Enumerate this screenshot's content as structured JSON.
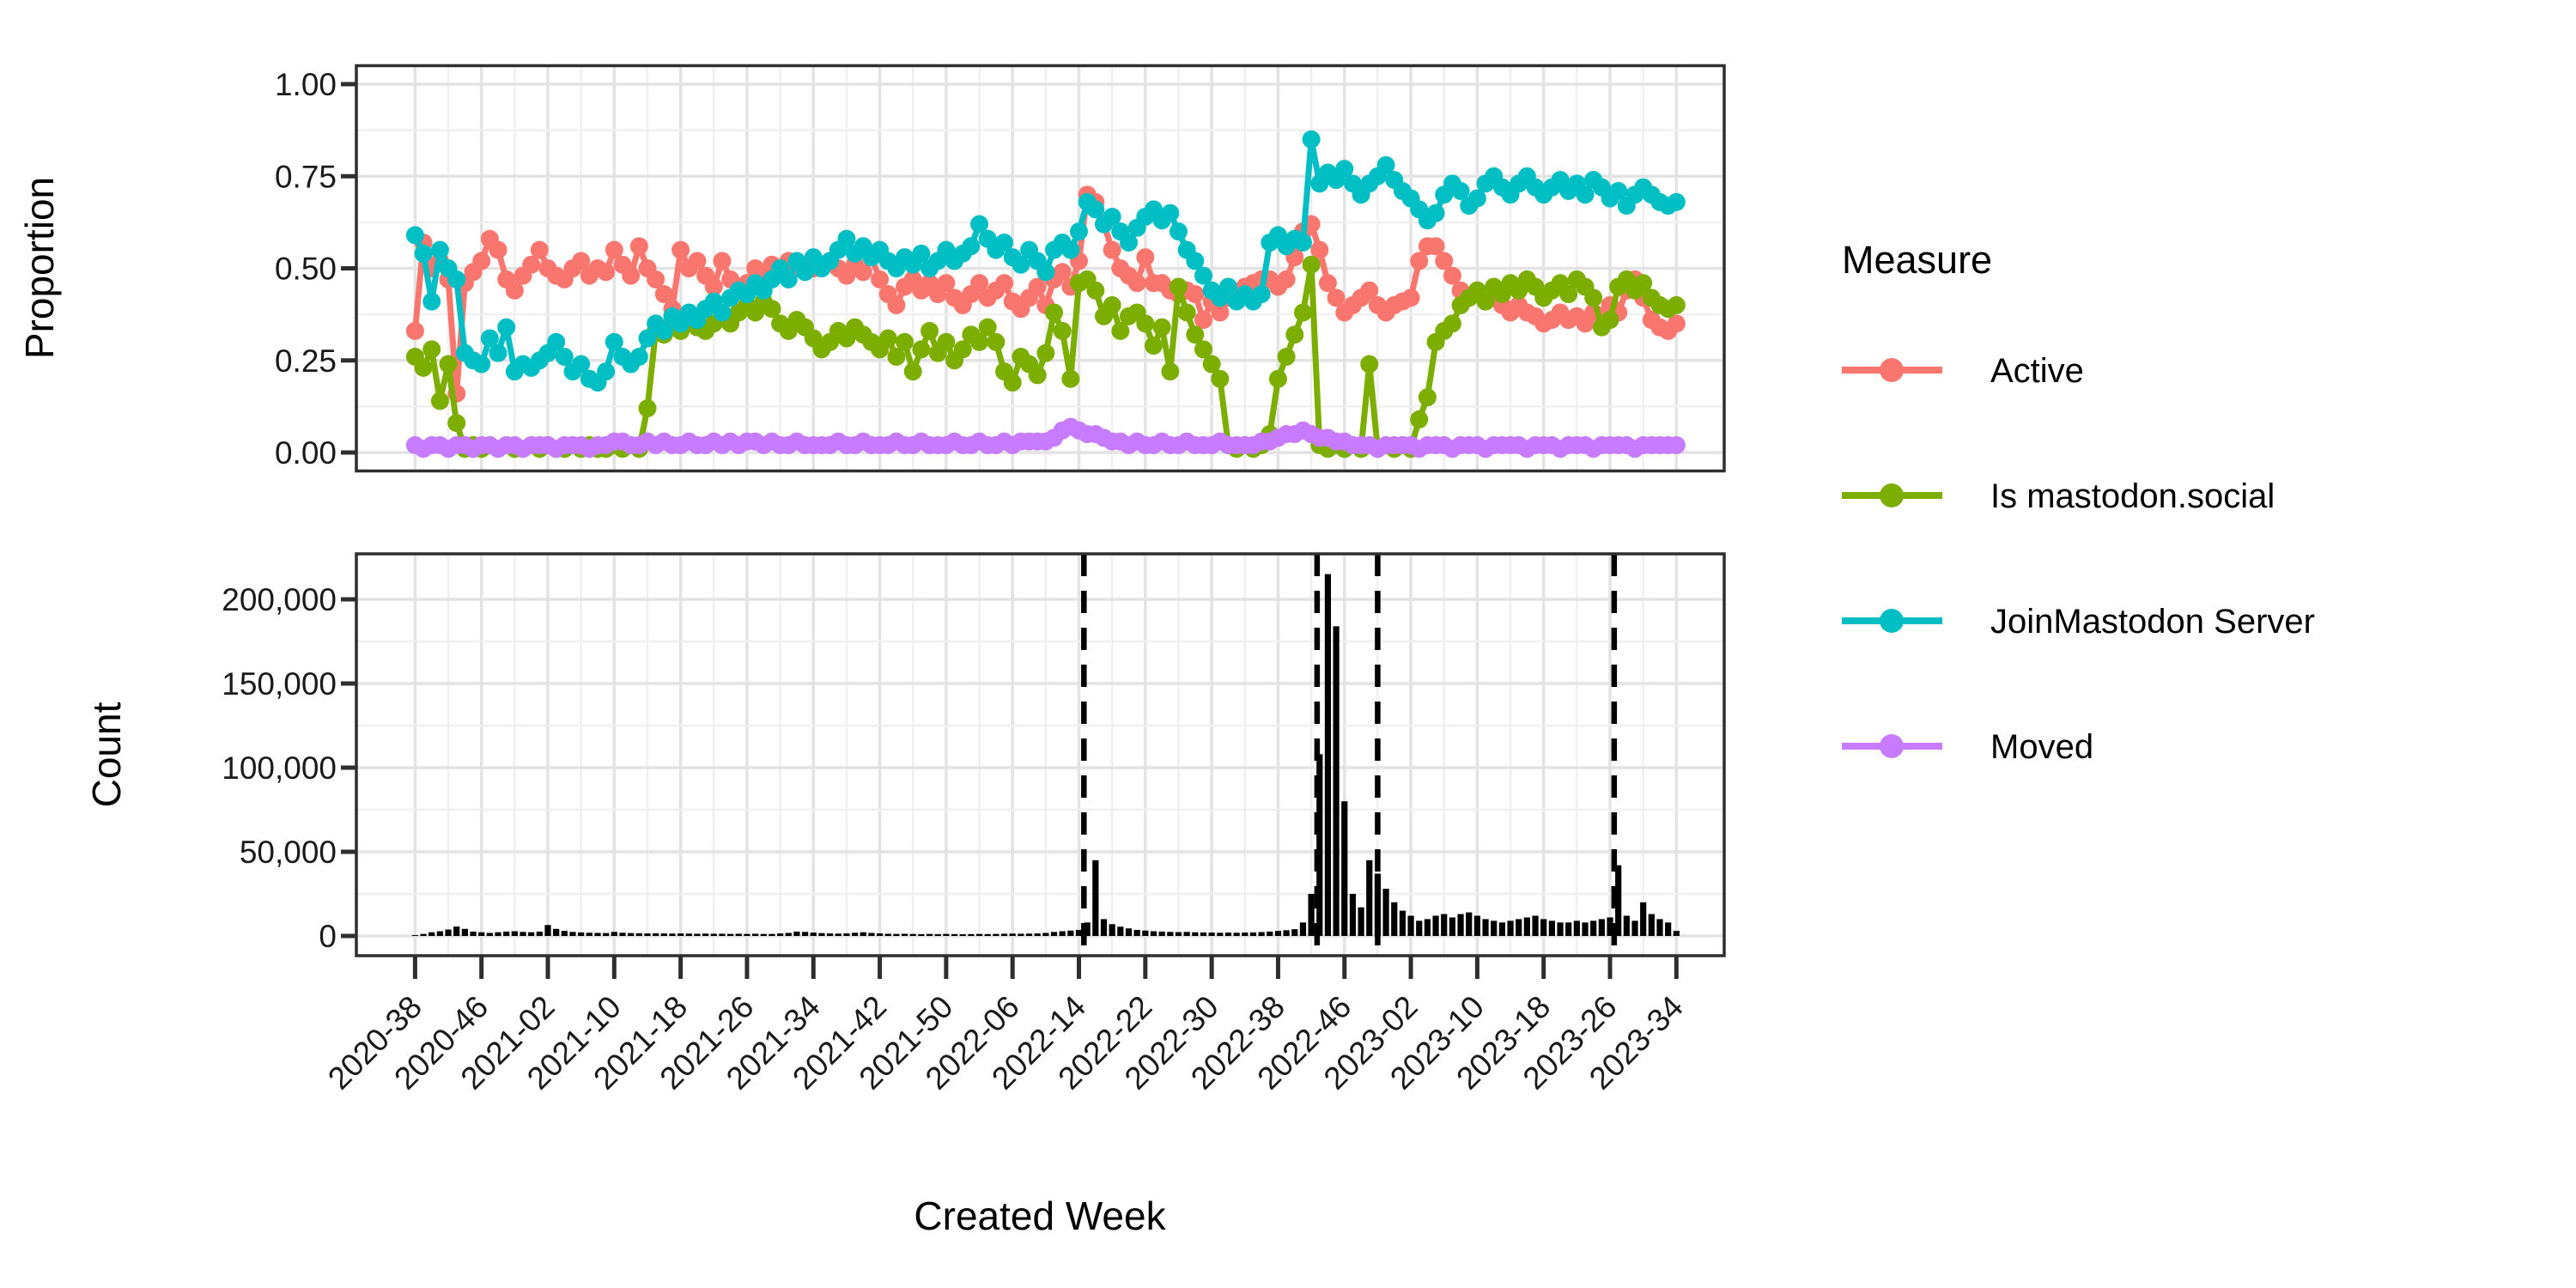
{
  "figure": {
    "background": "#ffffff",
    "panel_border_color": "#2e2e2e",
    "grid_major_color": "#e3e3e3",
    "grid_minor_color": "#f0f0f0",
    "x_axis_title": "Created Week",
    "top_axis_title": "Proportion",
    "bottom_axis_title": "Count"
  },
  "legend": {
    "title": "Measure",
    "items": [
      {
        "label": "Active",
        "color": "#F8766D"
      },
      {
        "label": "Is mastodon.social",
        "color": "#7CAE00"
      },
      {
        "label": "JoinMastodon Server",
        "color": "#00BFC4"
      },
      {
        "label": "Moved",
        "color": "#C77CFF"
      }
    ]
  },
  "chart_data": [
    {
      "type": "line",
      "panel": "top",
      "ylabel": "Proportion",
      "ylim": [
        0,
        1
      ],
      "grid": true,
      "legend_position": "right",
      "y_tick_values": [
        1.0,
        0.75,
        0.5,
        0.25,
        0.0
      ],
      "y_tick_labels": [
        "1.00",
        "0.75",
        "0.50",
        "0.25",
        "0.00"
      ],
      "x_start_week": "2020-38",
      "x_end_week": "2023-34",
      "weeks_total": 153,
      "x_tick_step_weeks": 8,
      "x_tick_labels": [
        "2020-38",
        "2020-46",
        "2021-02",
        "2021-10",
        "2021-18",
        "2021-26",
        "2021-34",
        "2021-42",
        "2021-50",
        "2022-06",
        "2022-14",
        "2022-22",
        "2022-30",
        "2022-38",
        "2022-46",
        "2023-02",
        "2023-10",
        "2023-18",
        "2023-26",
        "2023-34"
      ],
      "series": [
        {
          "name": "Active",
          "color": "#F8766D",
          "values": [
            0.33,
            0.57,
            0.5,
            0.52,
            0.47,
            0.16,
            0.46,
            0.49,
            0.52,
            0.58,
            0.55,
            0.47,
            0.44,
            0.48,
            0.51,
            0.55,
            0.5,
            0.48,
            0.47,
            0.5,
            0.52,
            0.48,
            0.5,
            0.49,
            0.55,
            0.51,
            0.48,
            0.56,
            0.5,
            0.47,
            0.43,
            0.39,
            0.55,
            0.5,
            0.52,
            0.48,
            0.45,
            0.52,
            0.47,
            0.44,
            0.46,
            0.5,
            0.48,
            0.51,
            0.5,
            0.52,
            0.5,
            0.51,
            0.5,
            0.51,
            0.52,
            0.5,
            0.48,
            0.51,
            0.49,
            0.53,
            0.47,
            0.43,
            0.4,
            0.45,
            0.47,
            0.44,
            0.46,
            0.43,
            0.46,
            0.42,
            0.4,
            0.43,
            0.46,
            0.42,
            0.44,
            0.46,
            0.41,
            0.39,
            0.42,
            0.45,
            0.4,
            0.47,
            0.49,
            0.45,
            0.52,
            0.7,
            0.68,
            0.62,
            0.55,
            0.5,
            0.48,
            0.46,
            0.53,
            0.46,
            0.46,
            0.44,
            0.43,
            0.44,
            0.43,
            0.36,
            0.41,
            0.38,
            0.42,
            0.42,
            0.45,
            0.46,
            0.47,
            0.47,
            0.45,
            0.47,
            0.53,
            0.6,
            0.62,
            0.55,
            0.46,
            0.42,
            0.38,
            0.4,
            0.42,
            0.44,
            0.4,
            0.38,
            0.4,
            0.41,
            0.42,
            0.52,
            0.56,
            0.56,
            0.52,
            0.48,
            0.44,
            0.42,
            0.44,
            0.41,
            0.42,
            0.4,
            0.38,
            0.4,
            0.38,
            0.37,
            0.35,
            0.36,
            0.38,
            0.36,
            0.37,
            0.35,
            0.38,
            0.37,
            0.4,
            0.38,
            0.44,
            0.47,
            0.42,
            0.36,
            0.34,
            0.33,
            0.35
          ]
        },
        {
          "name": "Is mastodon.social",
          "color": "#7CAE00",
          "values": [
            0.26,
            0.23,
            0.28,
            0.14,
            0.24,
            0.08,
            0.01,
            0.02,
            0.01,
            0.02,
            0.01,
            0.02,
            0.01,
            0.01,
            0.02,
            0.01,
            0.02,
            0.01,
            0.01,
            0.02,
            0.01,
            0.02,
            0.01,
            0.01,
            0.02,
            0.01,
            0.02,
            0.01,
            0.12,
            0.33,
            0.32,
            0.35,
            0.33,
            0.36,
            0.34,
            0.33,
            0.35,
            0.37,
            0.35,
            0.38,
            0.4,
            0.38,
            0.41,
            0.39,
            0.35,
            0.33,
            0.36,
            0.34,
            0.31,
            0.28,
            0.3,
            0.33,
            0.31,
            0.34,
            0.32,
            0.3,
            0.28,
            0.31,
            0.26,
            0.3,
            0.22,
            0.28,
            0.33,
            0.27,
            0.3,
            0.25,
            0.28,
            0.32,
            0.3,
            0.34,
            0.3,
            0.22,
            0.19,
            0.26,
            0.24,
            0.21,
            0.27,
            0.38,
            0.33,
            0.2,
            0.46,
            0.47,
            0.44,
            0.37,
            0.4,
            0.33,
            0.37,
            0.38,
            0.35,
            0.29,
            0.34,
            0.22,
            0.45,
            0.38,
            0.32,
            0.28,
            0.24,
            0.2,
            0.02,
            0.01,
            0.02,
            0.01,
            0.02,
            0.05,
            0.2,
            0.26,
            0.32,
            0.38,
            0.51,
            0.02,
            0.01,
            0.02,
            0.01,
            0.02,
            0.01,
            0.24,
            0.01,
            0.02,
            0.01,
            0.02,
            0.01,
            0.09,
            0.15,
            0.3,
            0.33,
            0.35,
            0.4,
            0.42,
            0.44,
            0.41,
            0.45,
            0.43,
            0.46,
            0.44,
            0.47,
            0.45,
            0.42,
            0.44,
            0.46,
            0.43,
            0.47,
            0.45,
            0.42,
            0.34,
            0.36,
            0.45,
            0.47,
            0.44,
            0.46,
            0.42,
            0.4,
            0.39,
            0.4
          ]
        },
        {
          "name": "JoinMastodon Server",
          "color": "#00BFC4",
          "values": [
            0.59,
            0.54,
            0.41,
            0.55,
            0.5,
            0.47,
            0.27,
            0.25,
            0.24,
            0.31,
            0.27,
            0.34,
            0.22,
            0.24,
            0.23,
            0.25,
            0.27,
            0.3,
            0.26,
            0.22,
            0.24,
            0.2,
            0.19,
            0.22,
            0.3,
            0.26,
            0.24,
            0.26,
            0.31,
            0.35,
            0.33,
            0.37,
            0.35,
            0.38,
            0.36,
            0.39,
            0.41,
            0.38,
            0.42,
            0.44,
            0.43,
            0.46,
            0.44,
            0.47,
            0.5,
            0.47,
            0.52,
            0.49,
            0.53,
            0.5,
            0.52,
            0.55,
            0.58,
            0.54,
            0.56,
            0.53,
            0.55,
            0.52,
            0.5,
            0.53,
            0.51,
            0.54,
            0.5,
            0.52,
            0.55,
            0.52,
            0.54,
            0.56,
            0.62,
            0.58,
            0.55,
            0.57,
            0.53,
            0.51,
            0.55,
            0.52,
            0.49,
            0.55,
            0.57,
            0.55,
            0.6,
            0.68,
            0.66,
            0.62,
            0.64,
            0.6,
            0.57,
            0.61,
            0.64,
            0.66,
            0.63,
            0.65,
            0.6,
            0.55,
            0.52,
            0.48,
            0.44,
            0.42,
            0.45,
            0.41,
            0.43,
            0.41,
            0.43,
            0.57,
            0.59,
            0.56,
            0.58,
            0.57,
            0.85,
            0.73,
            0.76,
            0.74,
            0.77,
            0.73,
            0.7,
            0.73,
            0.75,
            0.78,
            0.74,
            0.71,
            0.69,
            0.66,
            0.63,
            0.65,
            0.7,
            0.73,
            0.71,
            0.67,
            0.69,
            0.73,
            0.75,
            0.72,
            0.7,
            0.73,
            0.75,
            0.72,
            0.7,
            0.72,
            0.74,
            0.71,
            0.73,
            0.7,
            0.74,
            0.72,
            0.69,
            0.71,
            0.67,
            0.7,
            0.72,
            0.7,
            0.68,
            0.67,
            0.68
          ]
        },
        {
          "name": "Moved",
          "color": "#C77CFF",
          "values": [
            0.02,
            0.01,
            0.02,
            0.02,
            0.01,
            0.02,
            0.02,
            0.01,
            0.02,
            0.02,
            0.01,
            0.02,
            0.02,
            0.01,
            0.02,
            0.02,
            0.02,
            0.01,
            0.02,
            0.02,
            0.02,
            0.01,
            0.02,
            0.02,
            0.03,
            0.03,
            0.02,
            0.02,
            0.03,
            0.02,
            0.03,
            0.02,
            0.02,
            0.03,
            0.02,
            0.02,
            0.03,
            0.02,
            0.03,
            0.02,
            0.03,
            0.03,
            0.02,
            0.03,
            0.02,
            0.02,
            0.03,
            0.02,
            0.02,
            0.02,
            0.02,
            0.03,
            0.02,
            0.02,
            0.03,
            0.02,
            0.02,
            0.02,
            0.03,
            0.02,
            0.02,
            0.03,
            0.02,
            0.02,
            0.02,
            0.03,
            0.02,
            0.02,
            0.03,
            0.02,
            0.02,
            0.03,
            0.02,
            0.03,
            0.03,
            0.03,
            0.03,
            0.04,
            0.06,
            0.07,
            0.06,
            0.05,
            0.05,
            0.04,
            0.03,
            0.03,
            0.02,
            0.03,
            0.02,
            0.02,
            0.03,
            0.02,
            0.02,
            0.03,
            0.02,
            0.02,
            0.02,
            0.03,
            0.02,
            0.02,
            0.02,
            0.02,
            0.03,
            0.03,
            0.04,
            0.05,
            0.05,
            0.06,
            0.05,
            0.04,
            0.04,
            0.03,
            0.03,
            0.02,
            0.02,
            0.02,
            0.01,
            0.02,
            0.02,
            0.02,
            0.02,
            0.01,
            0.02,
            0.02,
            0.02,
            0.01,
            0.02,
            0.02,
            0.02,
            0.01,
            0.02,
            0.02,
            0.02,
            0.02,
            0.01,
            0.02,
            0.02,
            0.02,
            0.01,
            0.02,
            0.02,
            0.02,
            0.01,
            0.02,
            0.02,
            0.02,
            0.02,
            0.01,
            0.02,
            0.02,
            0.02,
            0.02,
            0.02
          ]
        }
      ]
    },
    {
      "type": "bar",
      "panel": "bottom",
      "ylabel": "Count",
      "ylim": [
        0,
        220000
      ],
      "bar_color": "#000000",
      "y_tick_values": [
        200000,
        150000,
        100000,
        50000,
        0
      ],
      "y_tick_labels": [
        "200,000",
        "150,000",
        "100,000",
        "50,000",
        "0"
      ],
      "x_tick_labels": [
        "2020-38",
        "2020-46",
        "2021-02",
        "2021-10",
        "2021-18",
        "2021-26",
        "2021-34",
        "2021-42",
        "2021-50",
        "2022-06",
        "2022-14",
        "2022-22",
        "2022-30",
        "2022-38",
        "2022-46",
        "2023-02",
        "2023-10",
        "2023-18",
        "2023-26",
        "2023-34"
      ],
      "dashed_vlines_week_index": [
        80.6,
        108.7,
        116.0,
        144.5
      ],
      "dashed_vline_color": "#000000",
      "values": [
        500,
        1200,
        2200,
        2800,
        3800,
        5600,
        4200,
        2600,
        2200,
        1800,
        2200,
        2600,
        2800,
        2400,
        2200,
        2600,
        6500,
        4200,
        3000,
        2400,
        2100,
        1900,
        1800,
        1700,
        2400,
        1900,
        1700,
        1600,
        1500,
        1600,
        1500,
        1400,
        1500,
        1400,
        1300,
        1400,
        1300,
        1300,
        1200,
        1300,
        1200,
        1300,
        1200,
        1200,
        1500,
        1800,
        2600,
        2400,
        2000,
        1700,
        1500,
        1400,
        1500,
        1900,
        2200,
        1800,
        1500,
        1300,
        1200,
        1300,
        1200,
        1100,
        1200,
        1100,
        1200,
        1100,
        1000,
        1100,
        1200,
        1100,
        1200,
        1300,
        1400,
        1300,
        1400,
        1500,
        1800,
        2400,
        2800,
        3200,
        3600,
        8000,
        45000,
        10000,
        7000,
        5500,
        4500,
        3600,
        3200,
        2800,
        2600,
        2400,
        2300,
        2400,
        2200,
        2100,
        2000,
        1900,
        2000,
        1900,
        2000,
        2100,
        2300,
        2600,
        3000,
        3400,
        4000,
        8000,
        25000,
        108000,
        215000,
        184000,
        80000,
        25000,
        17000,
        45000,
        37000,
        28000,
        20000,
        15000,
        12000,
        9000,
        10000,
        12000,
        13000,
        11000,
        13000,
        14000,
        12000,
        10000,
        9000,
        8000,
        9000,
        10000,
        11000,
        12000,
        10000,
        9000,
        8000,
        8000,
        9000,
        8000,
        9000,
        10000,
        11000,
        42000,
        12000,
        9000,
        20000,
        13000,
        10000,
        8000,
        3000
      ]
    }
  ]
}
